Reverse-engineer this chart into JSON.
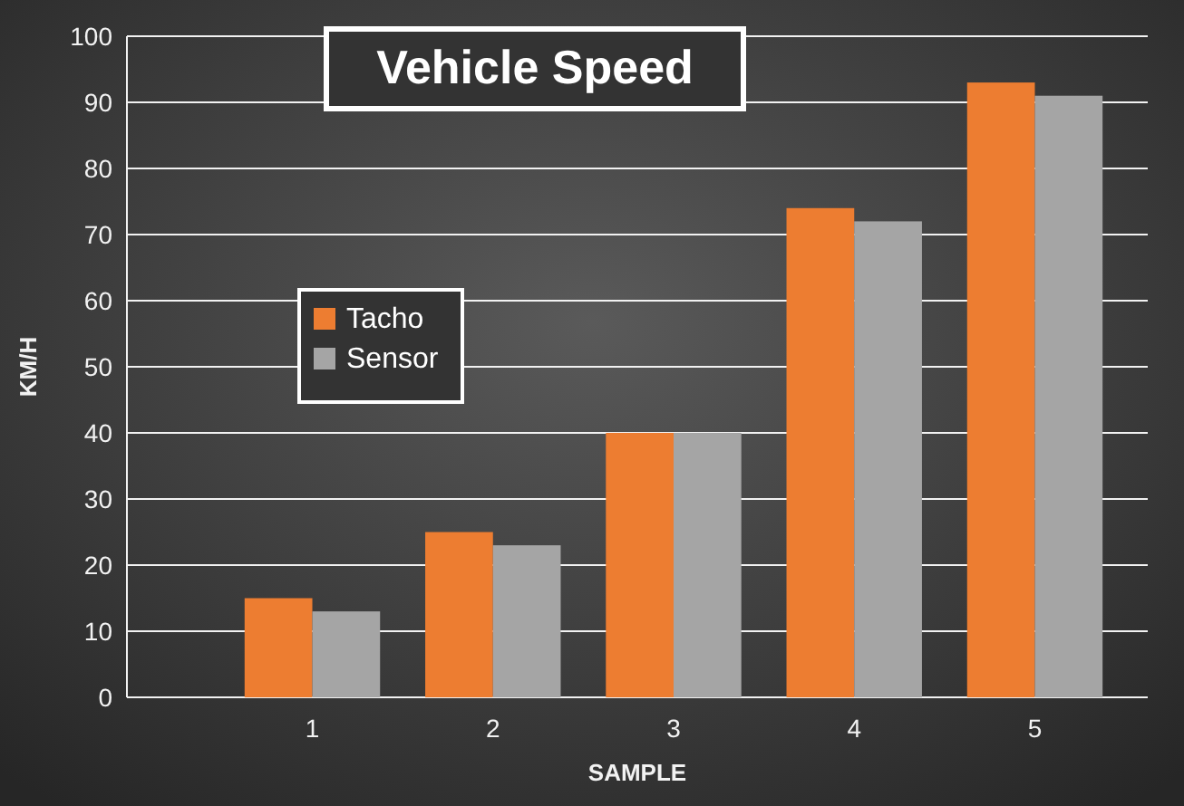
{
  "chart_data": {
    "type": "bar",
    "title": "Vehicle Speed",
    "xlabel": "SAMPLE",
    "ylabel": "KM/H",
    "categories": [
      "1",
      "2",
      "3",
      "4",
      "5"
    ],
    "series": [
      {
        "name": "Tacho",
        "color": "#ed7d31",
        "values": [
          15,
          25,
          40,
          74,
          93
        ]
      },
      {
        "name": "Sensor",
        "color": "#a5a5a5",
        "values": [
          13,
          23,
          40,
          72,
          91
        ]
      }
    ],
    "ylim": [
      0,
      100
    ],
    "yticks": [
      0,
      10,
      20,
      30,
      40,
      50,
      60,
      70,
      80,
      90,
      100
    ],
    "grid": "y",
    "legend": "left"
  }
}
